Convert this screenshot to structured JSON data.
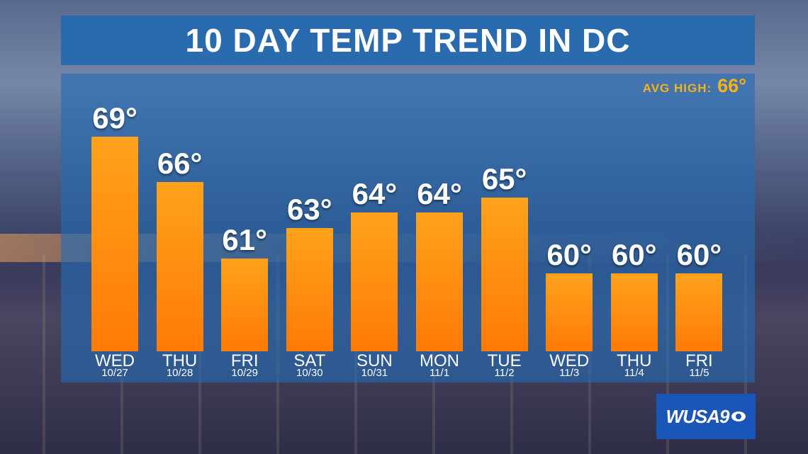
{
  "title": "10 DAY TEMP TREND IN DC",
  "avg_high": {
    "label": "AVG HIGH:",
    "value": "66°"
  },
  "logo": {
    "text": "WUSA9"
  },
  "colors": {
    "bar_top": "#ffa21c",
    "bar_bottom": "#ff7a06",
    "panel": "#246cb4",
    "avg": "#f6b21a"
  },
  "chart_data": {
    "type": "bar",
    "title": "10 DAY TEMP TREND IN DC",
    "categories": [
      "WED",
      "THU",
      "FRI",
      "SAT",
      "SUN",
      "MON",
      "TUE",
      "WED",
      "THU",
      "FRI"
    ],
    "dates": [
      "10/27",
      "10/28",
      "10/29",
      "10/30",
      "10/31",
      "11/1",
      "11/2",
      "11/3",
      "11/4",
      "11/5"
    ],
    "values": [
      69,
      66,
      61,
      63,
      64,
      64,
      65,
      60,
      60,
      60
    ],
    "value_labels": [
      "69°",
      "66°",
      "61°",
      "63°",
      "64°",
      "64°",
      "65°",
      "60°",
      "60°",
      "60°"
    ],
    "grid": false,
    "legend": "none"
  }
}
